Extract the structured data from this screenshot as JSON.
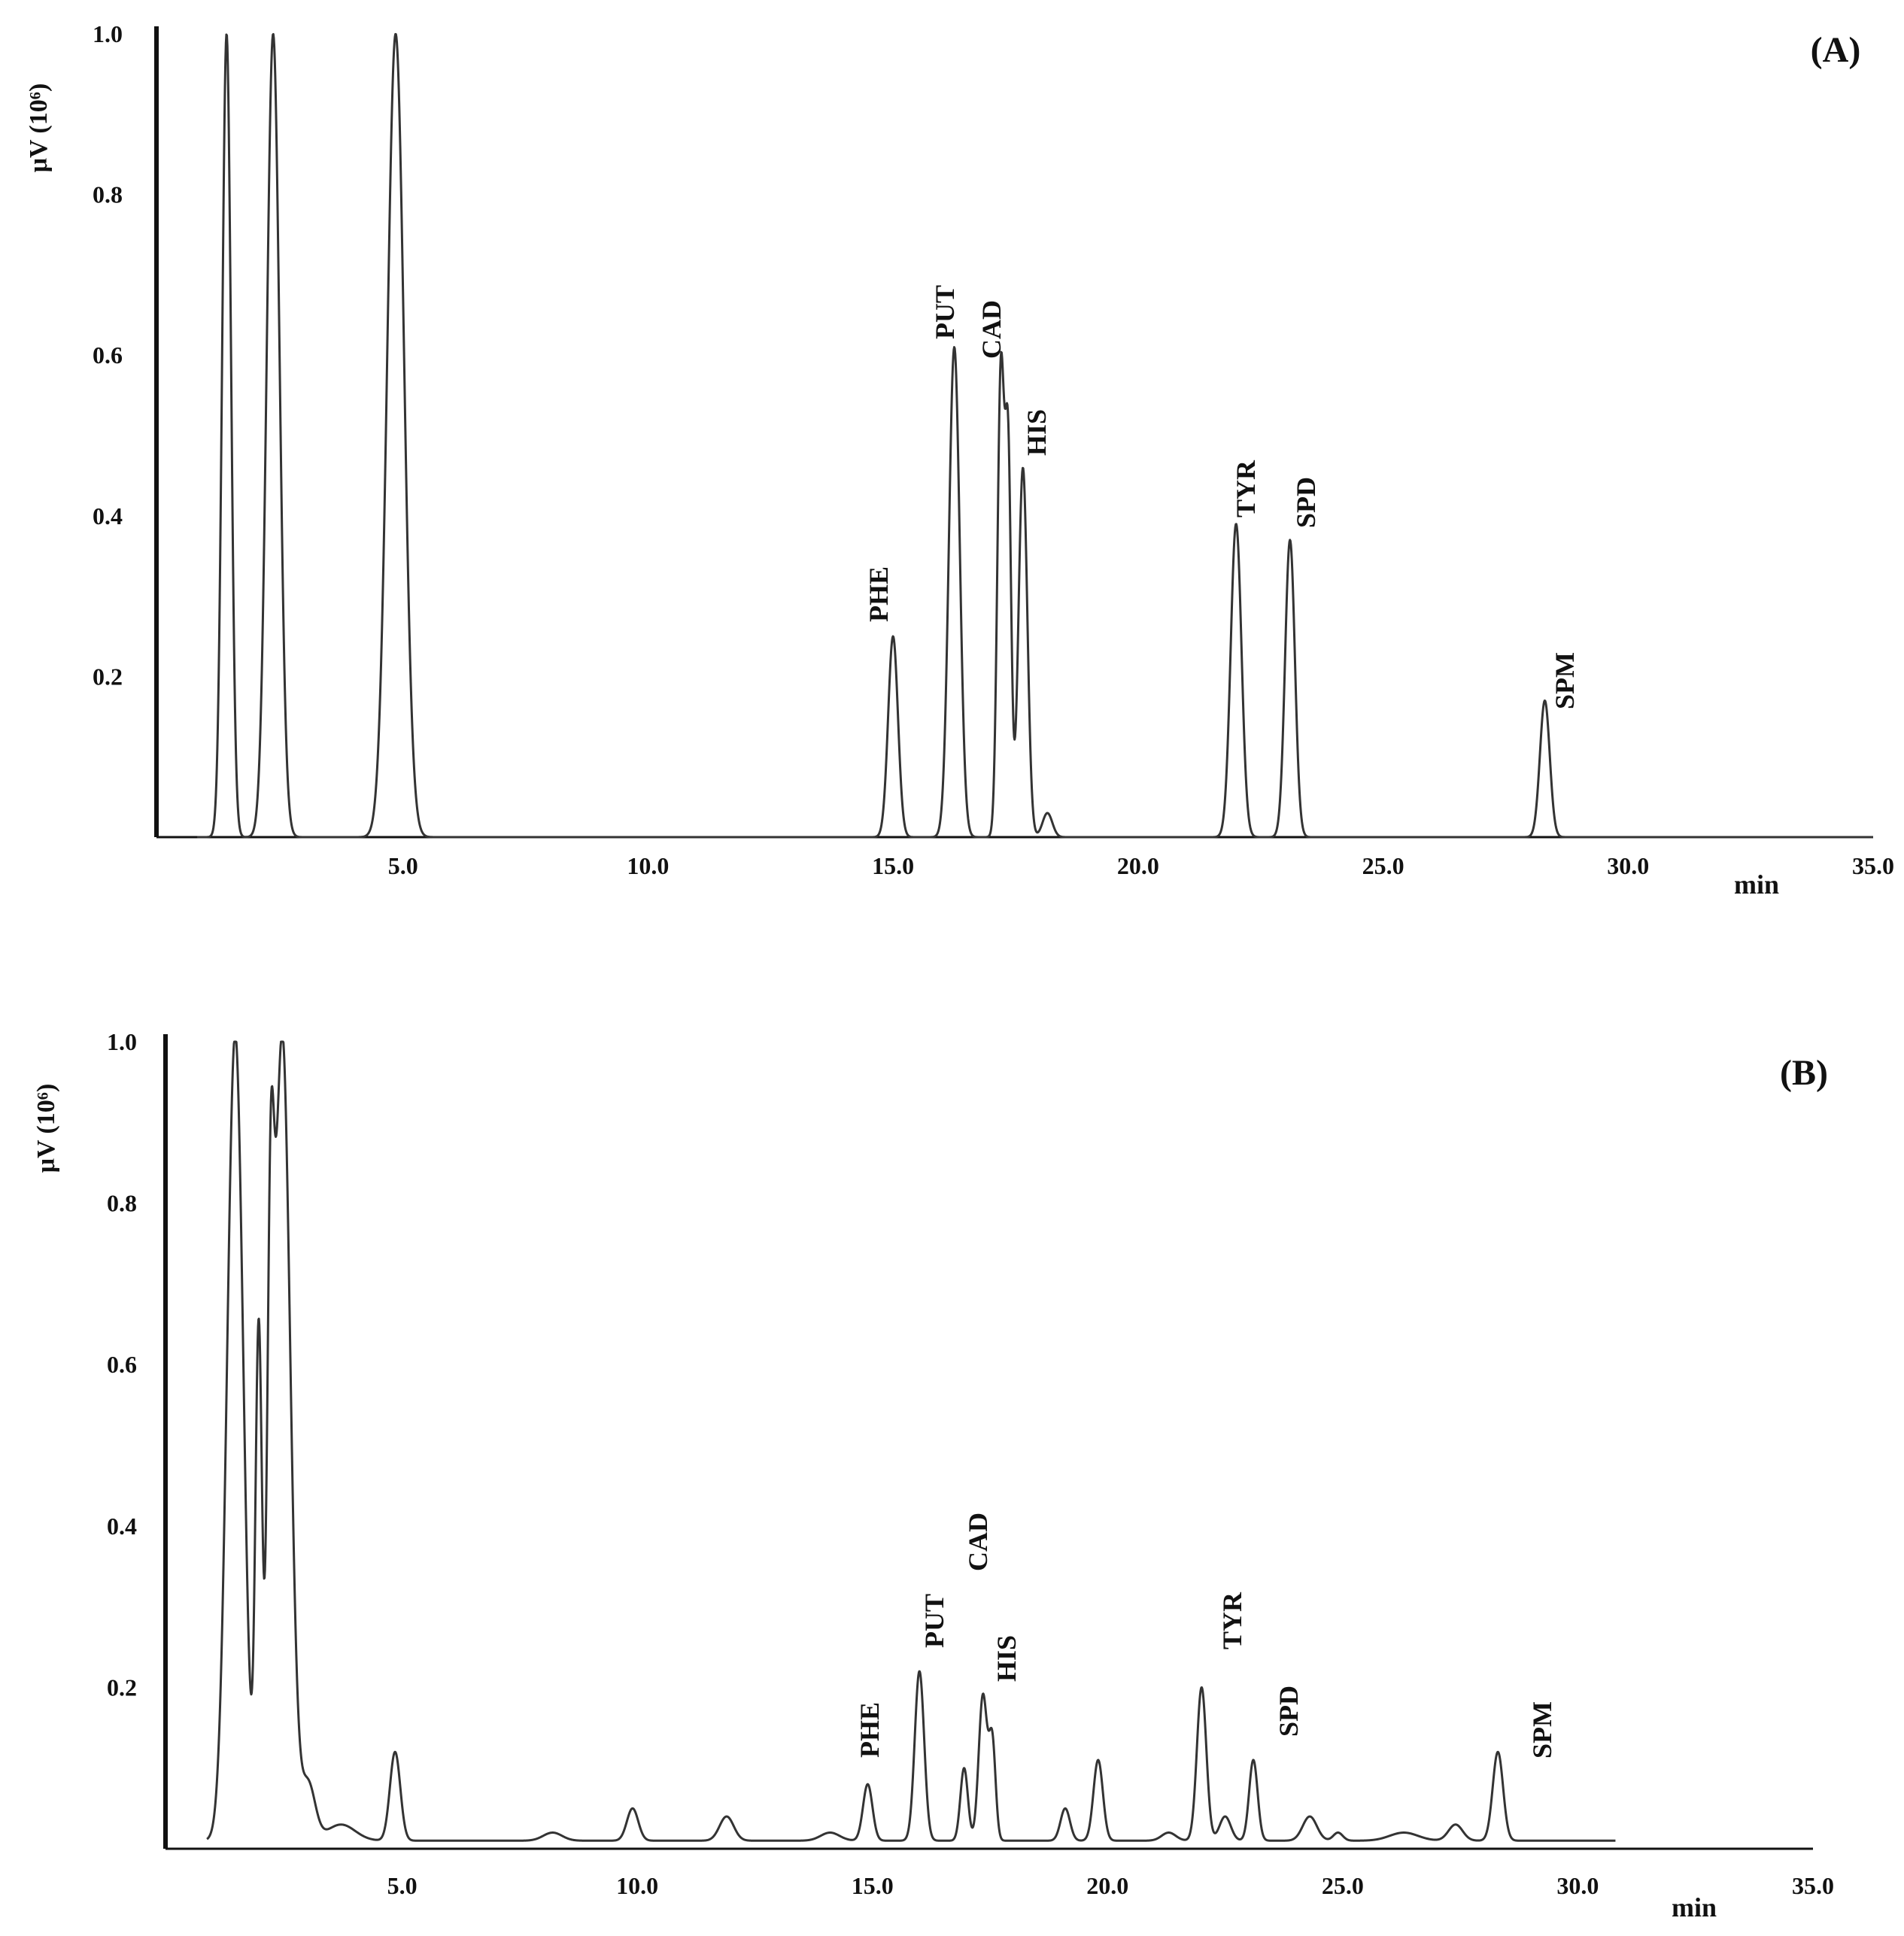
{
  "chart_data": [
    {
      "type": "line",
      "panel_label": "(A)",
      "ylabel": "μV (10⁶)",
      "xlabel": "min",
      "xlim": [
        0,
        35.0
      ],
      "ylim": [
        0,
        1.0
      ],
      "xticks": [
        "5.0",
        "10.0",
        "15.0",
        "20.0",
        "25.0",
        "30.0",
        "35.0"
      ],
      "yticks": [
        "0.2",
        "0.4",
        "0.6",
        "0.8",
        "1.0"
      ],
      "grid": false,
      "baseline": 0.0,
      "peaks": [
        {
          "rt": 1.4,
          "height": 1.0,
          "width": 0.09
        },
        {
          "rt": 2.35,
          "height": 1.0,
          "width": 0.13
        },
        {
          "rt": 4.85,
          "height": 1.0,
          "width": 0.17
        },
        {
          "rt": 15.0,
          "height": 0.25,
          "width": 0.1,
          "label": "PHE"
        },
        {
          "rt": 16.25,
          "height": 0.61,
          "width": 0.11,
          "label": "PUT"
        },
        {
          "rt": 17.2,
          "height": 0.58,
          "width": 0.07,
          "label": "CAD"
        },
        {
          "rt": 17.35,
          "height": 0.46,
          "width": 0.06
        },
        {
          "rt": 17.65,
          "height": 0.46,
          "width": 0.09,
          "label": "HIS"
        },
        {
          "rt": 18.15,
          "height": 0.03,
          "width": 0.1
        },
        {
          "rt": 22.0,
          "height": 0.39,
          "width": 0.11,
          "label": "TYR"
        },
        {
          "rt": 23.1,
          "height": 0.37,
          "width": 0.1,
          "label": "SPD"
        },
        {
          "rt": 28.3,
          "height": 0.17,
          "width": 0.1,
          "label": "SPM"
        }
      ]
    },
    {
      "type": "line",
      "panel_label": "(B)",
      "ylabel": "μV (10⁶)",
      "xlabel": "min",
      "xlim": [
        0,
        35.0
      ],
      "ylim": [
        0,
        1.0
      ],
      "xticks": [
        "5.0",
        "10.0",
        "15.0",
        "20.0",
        "25.0",
        "30.0",
        "35.0"
      ],
      "yticks": [
        "0.2",
        "0.4",
        "0.6",
        "0.8",
        "1.0"
      ],
      "grid": false,
      "baseline": 0.01,
      "peaks": [
        {
          "rt": 1.45,
          "height": 1.0,
          "width": 0.17
        },
        {
          "rt": 1.95,
          "height": 0.62,
          "width": 0.07
        },
        {
          "rt": 2.2,
          "height": 0.55,
          "width": 0.07
        },
        {
          "rt": 2.45,
          "height": 1.0,
          "width": 0.17
        },
        {
          "rt": 3.0,
          "height": 0.07,
          "width": 0.15
        },
        {
          "rt": 3.7,
          "height": 0.02,
          "width": 0.3
        },
        {
          "rt": 4.85,
          "height": 0.11,
          "width": 0.11
        },
        {
          "rt": 8.2,
          "height": 0.01,
          "width": 0.2
        },
        {
          "rt": 9.9,
          "height": 0.04,
          "width": 0.12
        },
        {
          "rt": 11.9,
          "height": 0.03,
          "width": 0.15
        },
        {
          "rt": 14.1,
          "height": 0.01,
          "width": 0.2
        },
        {
          "rt": 14.9,
          "height": 0.07,
          "width": 0.1,
          "label": "PHE"
        },
        {
          "rt": 16.0,
          "height": 0.21,
          "width": 0.1,
          "label": "PUT"
        },
        {
          "rt": 16.95,
          "height": 0.09,
          "width": 0.08,
          "label": "CAD"
        },
        {
          "rt": 17.35,
          "height": 0.18,
          "width": 0.09,
          "label": "HIS"
        },
        {
          "rt": 17.55,
          "height": 0.12,
          "width": 0.07
        },
        {
          "rt": 19.1,
          "height": 0.04,
          "width": 0.1
        },
        {
          "rt": 19.8,
          "height": 0.1,
          "width": 0.1
        },
        {
          "rt": 21.3,
          "height": 0.01,
          "width": 0.15
        },
        {
          "rt": 22.0,
          "height": 0.19,
          "width": 0.1,
          "label": "TYR"
        },
        {
          "rt": 22.5,
          "height": 0.03,
          "width": 0.12
        },
        {
          "rt": 23.1,
          "height": 0.1,
          "width": 0.09,
          "label": "SPD"
        },
        {
          "rt": 24.3,
          "height": 0.03,
          "width": 0.15
        },
        {
          "rt": 24.9,
          "height": 0.01,
          "width": 0.1
        },
        {
          "rt": 26.3,
          "height": 0.01,
          "width": 0.3
        },
        {
          "rt": 27.4,
          "height": 0.02,
          "width": 0.15
        },
        {
          "rt": 28.3,
          "height": 0.11,
          "width": 0.11,
          "label": "SPM"
        }
      ]
    }
  ]
}
